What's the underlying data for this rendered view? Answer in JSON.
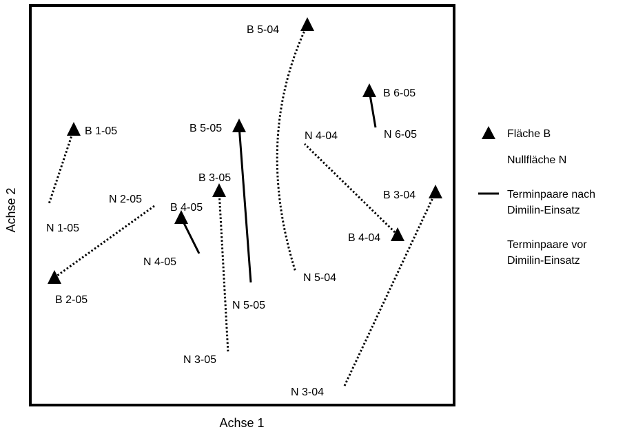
{
  "chart_data": {
    "type": "scatter",
    "xlabel": "Achse 1",
    "ylabel": "Achse 2",
    "grid": false,
    "legend_position": "right",
    "legend": {
      "triangle": "Fläche B",
      "plain": "Nullfläche N",
      "solid": "Terminpaare nach Dimilin-Einsatz",
      "dotted": "Terminpaare vor Dimilin-Einsatz"
    },
    "points": [
      {
        "label": "B 1-05",
        "marker": "triangle"
      },
      {
        "label": "N 1-05",
        "marker": "none"
      },
      {
        "label": "B 2-05",
        "marker": "triangle"
      },
      {
        "label": "N 2-05",
        "marker": "none"
      },
      {
        "label": "B 3-05",
        "marker": "triangle"
      },
      {
        "label": "N 3-05",
        "marker": "none"
      },
      {
        "label": "B 4-05",
        "marker": "triangle"
      },
      {
        "label": "N 4-05",
        "marker": "none"
      },
      {
        "label": "B 5-05",
        "marker": "triangle"
      },
      {
        "label": "N 5-05",
        "marker": "none"
      },
      {
        "label": "B 6-05",
        "marker": "triangle"
      },
      {
        "label": "N 6-05",
        "marker": "none"
      },
      {
        "label": "B 3-04",
        "marker": "triangle"
      },
      {
        "label": "N 3-04",
        "marker": "none"
      },
      {
        "label": "B 4-04",
        "marker": "triangle"
      },
      {
        "label": "N 4-04",
        "marker": "none"
      },
      {
        "label": "B 5-04",
        "marker": "triangle"
      },
      {
        "label": "N 5-04",
        "marker": "none"
      }
    ],
    "pairs": [
      {
        "from": "B 1-05",
        "to": "N 1-05",
        "style": "dotted"
      },
      {
        "from": "B 2-05",
        "to": "N 2-05",
        "style": "dotted"
      },
      {
        "from": "B 3-05",
        "to": "N 3-05",
        "style": "dotted"
      },
      {
        "from": "B 4-05",
        "to": "N 4-05",
        "style": "solid"
      },
      {
        "from": "B 5-05",
        "to": "N 5-05",
        "style": "solid"
      },
      {
        "from": "B 6-05",
        "to": "N 6-05",
        "style": "solid"
      },
      {
        "from": "B 3-04",
        "to": "N 3-04",
        "style": "dotted"
      },
      {
        "from": "B 4-04",
        "to": "N 4-04",
        "style": "dotted"
      },
      {
        "from": "B 5-04",
        "to": "N 5-04",
        "style": "dotted"
      }
    ]
  }
}
